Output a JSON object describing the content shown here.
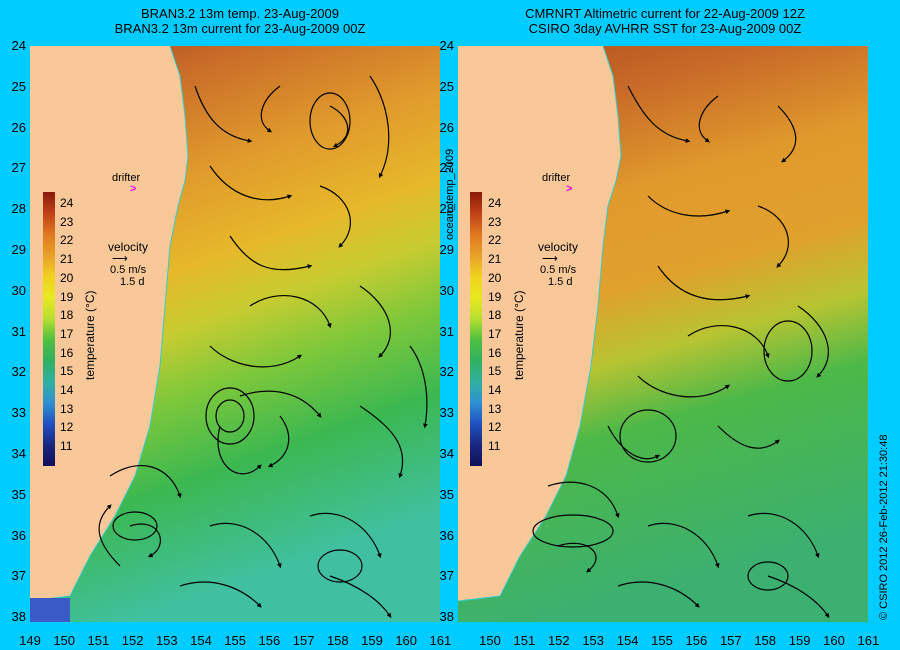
{
  "left_panel": {
    "title_line1": "BRAN3.2 13m temp. 23-Aug-2009",
    "title_line2": "BRAN3.2 13m current for 23-Aug-2009 00Z",
    "drifter_label": "drifter",
    "velocity_label": "velocity",
    "velocity_scale": "0.5 m/s",
    "velocity_time": "1.5 d",
    "colorbar_title": "temperature (°C)"
  },
  "right_panel": {
    "title_line1": "CMRNRT Altimetric current for 22-Aug-2009 12Z",
    "title_line2": "CSIRO 3day AVHRR SST for 23-Aug-2009 00Z",
    "drifter_label": "drifter",
    "velocity_label": "velocity",
    "velocity_scale": "0.5 m/s",
    "velocity_time": "1.5 d",
    "colorbar_title": "temperature (°C)"
  },
  "center_label": "ocean_temp_2009",
  "side_label": "© CSIRO 2012   26-Feb-2012 21:30:48",
  "latitude_ticks": [
    "24",
    "25",
    "26",
    "27",
    "28",
    "29",
    "30",
    "31",
    "32",
    "33",
    "34",
    "35",
    "36",
    "37",
    "38"
  ],
  "left_longitude_ticks": [
    "149",
    "150",
    "151",
    "152",
    "153",
    "154",
    "155",
    "156",
    "157",
    "158",
    "159",
    "160",
    "161"
  ],
  "right_longitude_ticks": [
    "150",
    "151",
    "152",
    "153",
    "154",
    "155",
    "156",
    "157",
    "158",
    "159",
    "160",
    "161"
  ],
  "colorbar_ticks": [
    "24",
    "23",
    "22",
    "21",
    "20",
    "19",
    "18",
    "17",
    "16",
    "15",
    "14",
    "13",
    "12",
    "11"
  ],
  "colors": {
    "background": "#00ccff",
    "land": "#f8c898",
    "drifter": "#ff00ff",
    "coastline": "#33cccc"
  }
}
